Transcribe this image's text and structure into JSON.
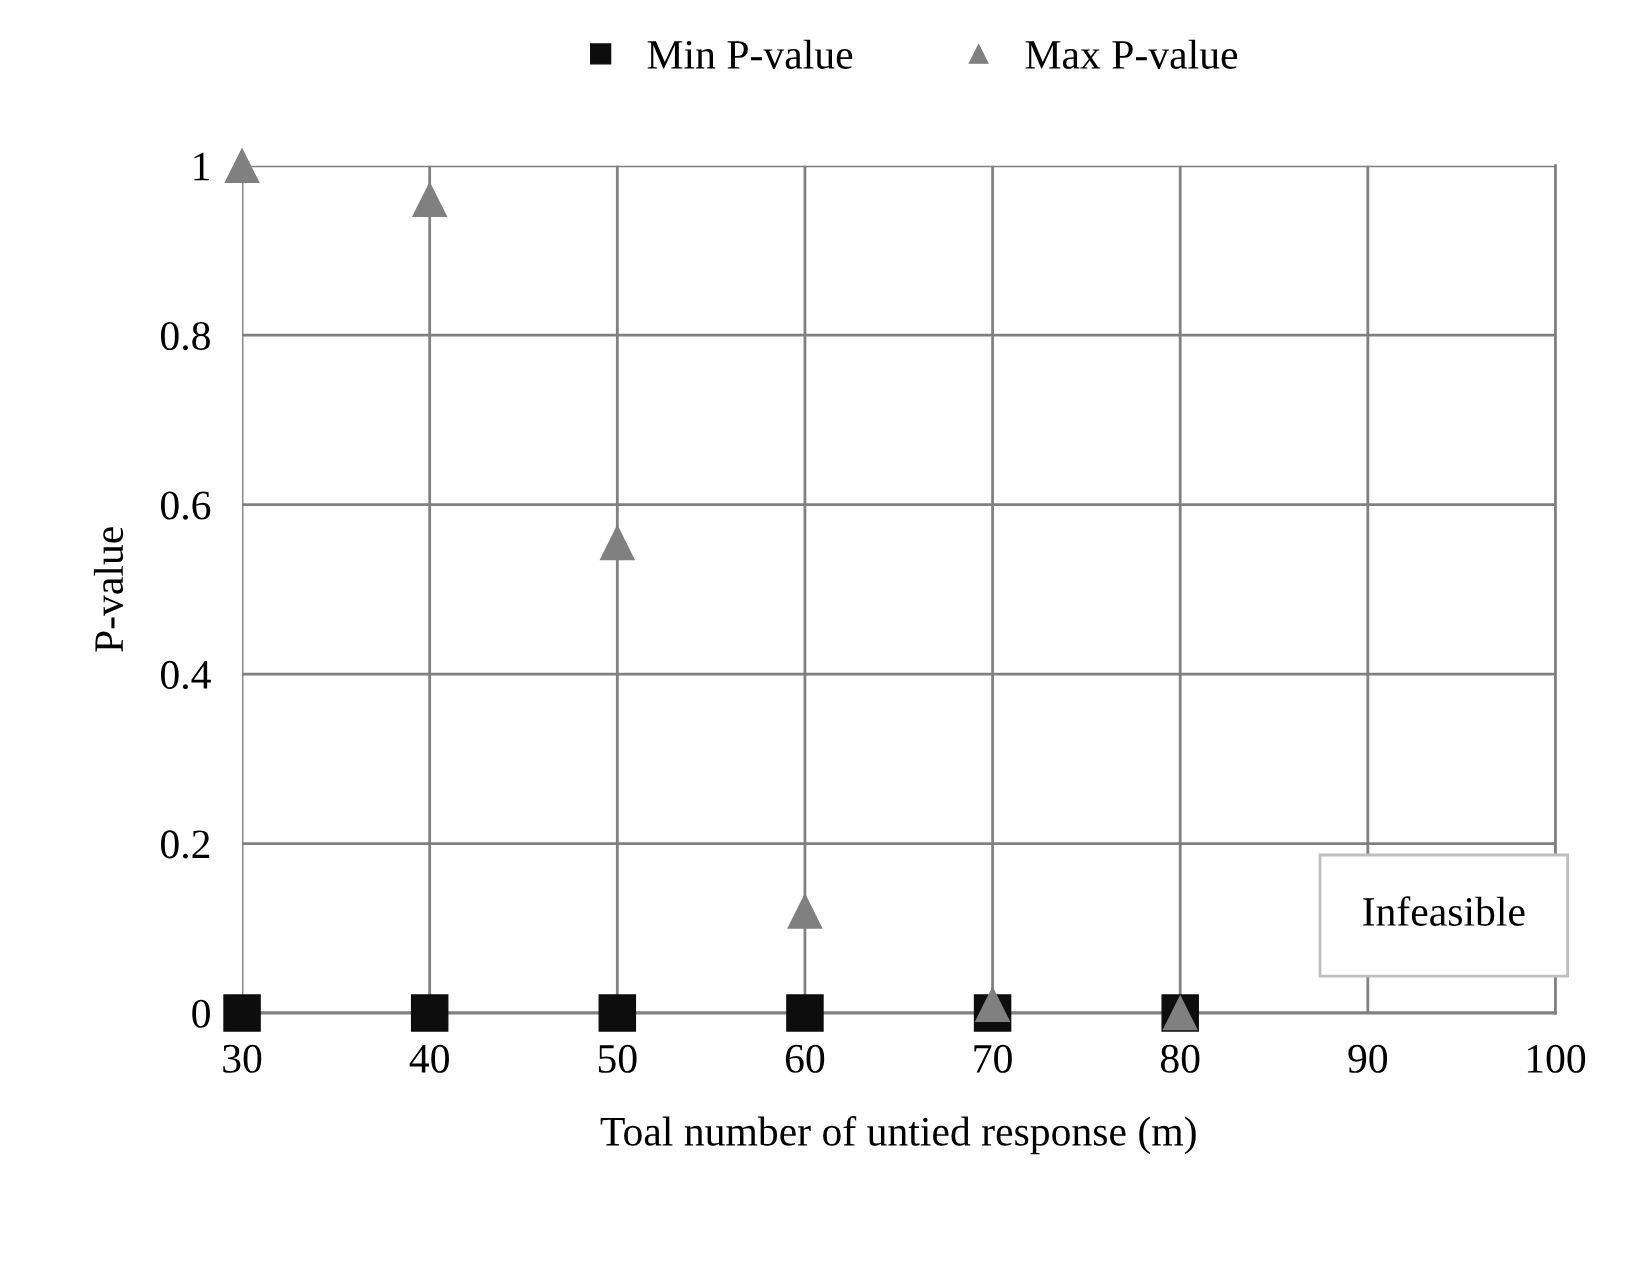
{
  "chart_data": {
    "type": "scatter",
    "xlabel": "Toal number of untied response (m)",
    "ylabel": "P-value",
    "x": [
      30,
      40,
      50,
      60,
      70,
      80
    ],
    "series": [
      {
        "name": "Min P-value",
        "color": "#0d0d0d",
        "marker": "square",
        "values": [
          0,
          0,
          0,
          0,
          0,
          0
        ]
      },
      {
        "name": "Max P-value",
        "color": "#808080",
        "marker": "triangle",
        "values": [
          1.0,
          0.96,
          0.555,
          0.12,
          0.01,
          0.0
        ]
      }
    ],
    "xlim": [
      30,
      100
    ],
    "xticks": [
      30,
      40,
      50,
      60,
      70,
      80,
      90,
      100
    ],
    "ylim": [
      0,
      1
    ],
    "yticks": [
      0,
      0.2,
      0.4,
      0.6,
      0.8,
      1
    ],
    "grid": true,
    "legend": "top",
    "annotations": [
      "Infeasible"
    ]
  }
}
